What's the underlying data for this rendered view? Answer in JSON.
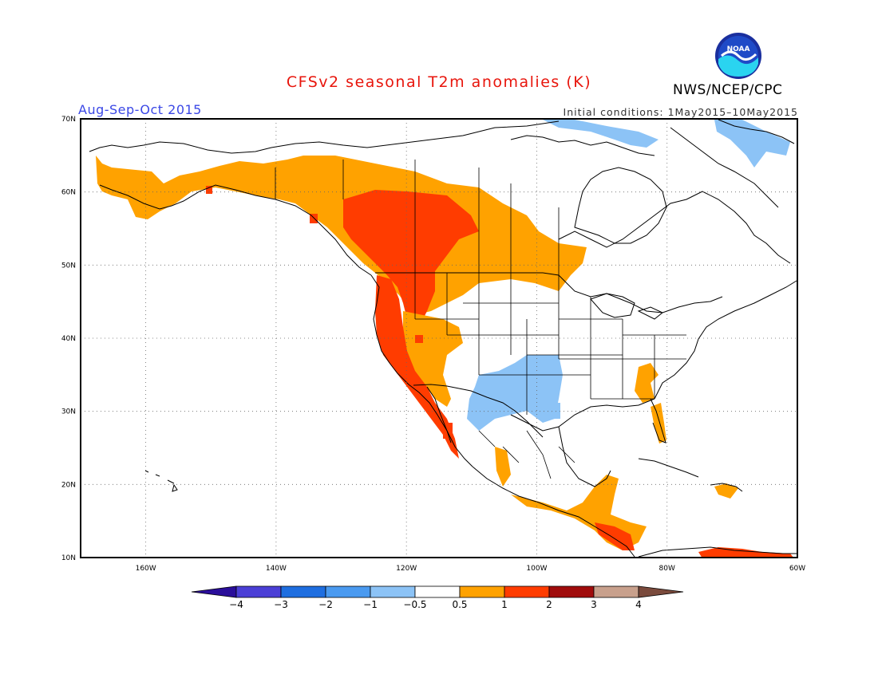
{
  "title": "CFSv2 seasonal T2m anomalies (K)",
  "period": "Aug-Sep-Oct 2015",
  "initial_conditions": "Initial conditions: 1May2015–10May2015",
  "agency": "NWS/NCEP/CPC",
  "logo_text": "NOAA",
  "map": {
    "lon_range": [
      -170,
      -60
    ],
    "lat_range": [
      10,
      70
    ],
    "lat_labels": [
      "70N",
      "60N",
      "50N",
      "40N",
      "30N",
      "20N",
      "10N"
    ],
    "lon_labels": [
      "160W",
      "140W",
      "120W",
      "100W",
      "80W",
      "60W"
    ],
    "grid": "dotted"
  },
  "legend": {
    "unit": "K",
    "tick_labels": [
      "−4",
      "−3",
      "−2",
      "−1",
      "−0.5",
      "0.5",
      "1",
      "2",
      "3",
      "4"
    ],
    "colors": {
      "lt_m4": "#2a0e9a",
      "m4_m3": "#4b3fd6",
      "m3_m2": "#1e6ee0",
      "m2_m1": "#4a9af0",
      "m1_m05": "#8cc3f6",
      "neutral": "#ffffff",
      "p05_p1": "#ffa200",
      "p1_p2": "#ff3c00",
      "p2_p3": "#a00c0c",
      "p3_p4": "#c8a08c",
      "gt_p4": "#7a4a3c"
    }
  },
  "anomaly_regions": [
    {
      "level": "p05_p1",
      "area": "Alaska and western/central Canada"
    },
    {
      "level": "p1_p2",
      "area": "Western Canada and Pacific Northwest"
    },
    {
      "level": "p05_p1",
      "area": "Western United States interior"
    },
    {
      "level": "p1_p2",
      "area": "California and Baja California coast"
    },
    {
      "level": "m1_m05",
      "area": "Southern Plains and Mexico (Texas, New Mexico, Chihuahua)"
    },
    {
      "level": "m1_m05",
      "area": "Northeastern Canada / Greenland coast"
    },
    {
      "level": "p05_p1",
      "area": "Southeast US coast and Florida"
    },
    {
      "level": "p05_p1",
      "area": "Southern Mexico and Central America"
    },
    {
      "level": "p1_p2",
      "area": "Central America Pacific coast"
    },
    {
      "level": "p05_p1",
      "area": "Caribbean (Hispaniola)"
    },
    {
      "level": "p1_p2",
      "area": "Northern South America coast"
    }
  ]
}
